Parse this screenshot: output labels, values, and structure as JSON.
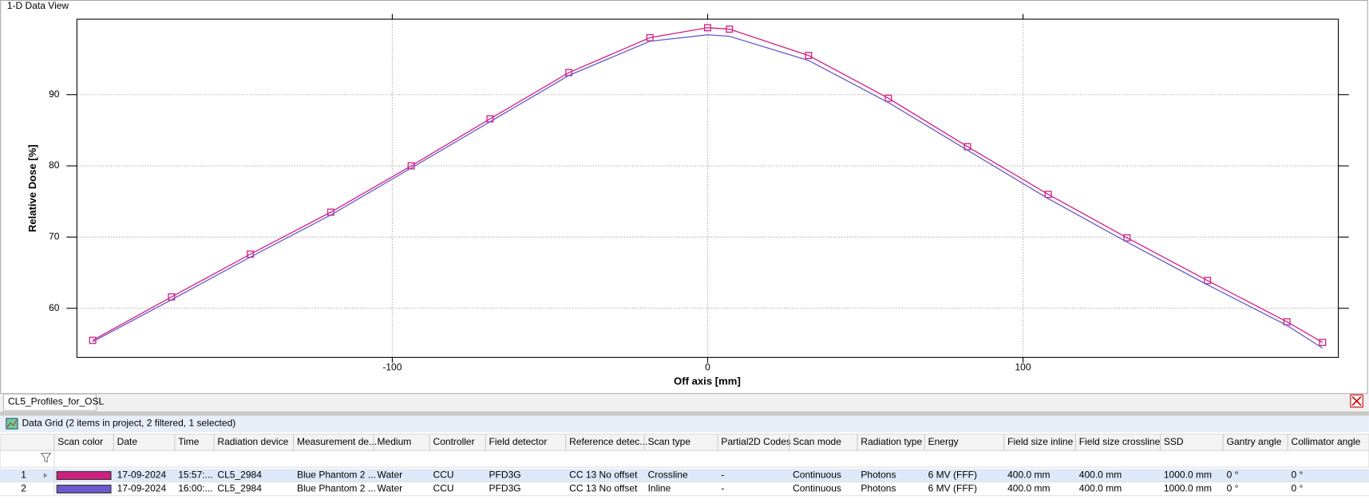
{
  "window_title": "1-D Data View",
  "chart_data": {
    "type": "line",
    "x_label": "Off axis [mm]",
    "y_label": "Relative Dose [%]",
    "x": [
      -195,
      -170,
      -145,
      -119.5,
      -94,
      -69,
      -44,
      -18.3,
      0,
      6.9,
      32,
      57.3,
      82.4,
      108,
      133,
      158.5,
      183.7,
      195
    ],
    "series": [
      {
        "name": "Crossline",
        "color": "#d0207f",
        "marker": "square",
        "values": [
          55.5,
          61.6,
          67.6,
          73.5,
          80.0,
          86.6,
          93.1,
          98.0,
          99.4,
          99.2,
          95.5,
          89.5,
          82.7,
          76.0,
          69.9,
          63.9,
          58.1,
          55.2
        ]
      },
      {
        "name": "Inline",
        "color": "#6a5acd",
        "values": [
          55.3,
          61.2,
          67.2,
          73.1,
          79.7,
          86.2,
          92.7,
          97.5,
          98.4,
          98.2,
          94.8,
          88.9,
          82.2,
          75.4,
          69.3,
          63.3,
          57.6,
          54.4
        ]
      }
    ],
    "xlim": [
      -200,
      200
    ],
    "ylim": [
      53.1,
      100.6
    ],
    "xticks": [
      -100,
      0,
      100
    ],
    "yticks": [
      60,
      70,
      80,
      90
    ],
    "grid": true
  },
  "tab": {
    "label": "CL5_Profiles_for_OSL"
  },
  "data_grid": {
    "title": "Data Grid (2 items in project, 2 filtered, 1 selected)",
    "columns": [
      "Scan color",
      "Date",
      "Time",
      "Radiation device",
      "Measurement de...",
      "Medium",
      "Controller",
      "Field detector",
      "Reference detec...",
      "Scan type",
      "Partial2D Codes",
      "Scan mode",
      "Radiation type",
      "Energy",
      "Field size inline",
      "Field size crossline",
      "SSD",
      "Gantry angle",
      "Collimator angle"
    ],
    "rows": [
      {
        "number": "1",
        "date": "17-09-2024",
        "time": "15:57:...",
        "device": "CL5_2984",
        "measurement": "Blue Phantom 2  ...",
        "medium": "Water",
        "controller": "CCU",
        "field_detector": "PFD3G",
        "reference_detector": "CC 13 No offset",
        "partial2d": "-",
        "scan_mode": "Continuous",
        "radiation_type": "Photons",
        "energy": "6 MV (FFF)",
        "field_size_inline": "400.0 mm",
        "field_size_crossline": "400.0 mm",
        "ssd": "1000.0 mm",
        "gantry": "0 °",
        "collimator": "0 °"
      },
      {
        "number": "2",
        "date": "17-09-2024",
        "time": "16:00:...",
        "device": "CL5_2984",
        "measurement": "Blue Phantom 2  ...",
        "medium": "Water",
        "controller": "CCU",
        "field_detector": "PFD3G",
        "reference_detector": "CC 13 No offset",
        "partial2d": "-",
        "scan_mode": "Continuous",
        "radiation_type": "Photons",
        "energy": "6 MV (FFF)",
        "field_size_inline": "400.0 mm",
        "field_size_crossline": "400.0 mm",
        "ssd": "1000.0 mm",
        "gantry": "0 °",
        "collimator": "0 °"
      }
    ]
  }
}
